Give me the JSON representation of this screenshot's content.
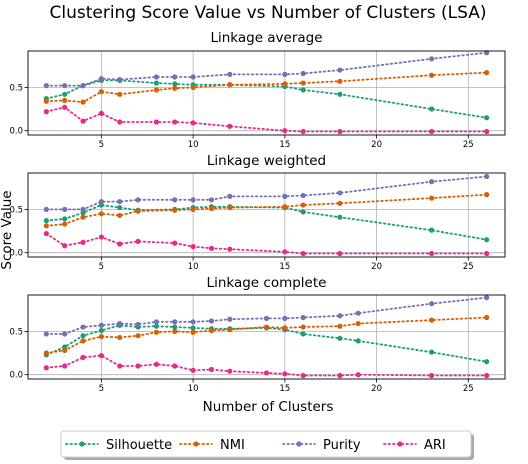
{
  "title": "Clustering Score Value vs Number of Clusters (LSA)",
  "xlabel": "Number of Clusters",
  "ylabel": "Score Value",
  "colors": {
    "Silhouette": "#1b9e77",
    "NMI": "#d95f02",
    "Purity": "#7570b3",
    "ARI": "#e7298a"
  },
  "legend": [
    "Silhouette",
    "NMI",
    "Purity",
    "ARI"
  ],
  "chart_data": [
    {
      "type": "line",
      "title": "Linkage average",
      "xlim": [
        1,
        27
      ],
      "ylim": [
        -0.05,
        0.92
      ],
      "xticks": [
        5,
        10,
        15,
        20,
        25
      ],
      "yticks": [
        "0.0",
        "0.5"
      ],
      "grid": true,
      "x": [
        2,
        3,
        4,
        5,
        6,
        8,
        9,
        10,
        12,
        15,
        16,
        18,
        23,
        26
      ],
      "series": [
        {
          "name": "Silhouette",
          "values": [
            0.37,
            0.42,
            0.52,
            0.58,
            0.58,
            0.55,
            0.54,
            0.53,
            0.53,
            0.51,
            0.47,
            0.42,
            0.25,
            0.15
          ]
        },
        {
          "name": "NMI",
          "values": [
            0.34,
            0.35,
            0.33,
            0.45,
            0.42,
            0.47,
            0.49,
            0.5,
            0.53,
            0.54,
            0.55,
            0.57,
            0.64,
            0.67
          ]
        },
        {
          "name": "Purity",
          "values": [
            0.52,
            0.52,
            0.52,
            0.6,
            0.59,
            0.62,
            0.62,
            0.62,
            0.65,
            0.65,
            0.66,
            0.7,
            0.83,
            0.9
          ]
        },
        {
          "name": "ARI",
          "values": [
            0.22,
            0.27,
            0.11,
            0.2,
            0.1,
            0.1,
            0.1,
            0.09,
            0.05,
            0.0,
            -0.01,
            -0.01,
            -0.01,
            -0.01
          ]
        }
      ]
    },
    {
      "type": "line",
      "title": "Linkage weighted",
      "xlim": [
        1,
        27
      ],
      "ylim": [
        -0.05,
        0.92
      ],
      "xticks": [
        5,
        10,
        15,
        20,
        25
      ],
      "yticks": [
        "0.0",
        "0.5"
      ],
      "grid": true,
      "x": [
        2,
        3,
        4,
        5,
        6,
        7,
        9,
        10,
        11,
        12,
        15,
        16,
        18,
        23,
        26
      ],
      "series": [
        {
          "name": "Silhouette",
          "values": [
            0.37,
            0.39,
            0.46,
            0.55,
            0.52,
            0.49,
            0.5,
            0.52,
            0.53,
            0.53,
            0.52,
            0.47,
            0.41,
            0.26,
            0.15
          ]
        },
        {
          "name": "NMI",
          "values": [
            0.31,
            0.33,
            0.41,
            0.45,
            0.43,
            0.48,
            0.49,
            0.5,
            0.51,
            0.52,
            0.53,
            0.55,
            0.57,
            0.63,
            0.67
          ]
        },
        {
          "name": "Purity",
          "values": [
            0.5,
            0.5,
            0.5,
            0.59,
            0.59,
            0.61,
            0.61,
            0.61,
            0.61,
            0.65,
            0.65,
            0.66,
            0.69,
            0.82,
            0.88
          ]
        },
        {
          "name": "ARI",
          "values": [
            0.22,
            0.08,
            0.12,
            0.18,
            0.1,
            0.13,
            0.11,
            0.07,
            0.05,
            0.04,
            0.01,
            -0.01,
            -0.01,
            -0.01,
            -0.01
          ]
        }
      ]
    },
    {
      "type": "line",
      "title": "Linkage complete",
      "xlim": [
        1,
        27
      ],
      "ylim": [
        -0.05,
        0.92
      ],
      "xticks": [
        5,
        10,
        15,
        20,
        25
      ],
      "yticks": [
        "0.0",
        "0.5"
      ],
      "grid": true,
      "x": [
        2,
        3,
        4,
        5,
        6,
        7,
        8,
        9,
        10,
        11,
        12,
        14,
        15,
        16,
        18,
        19,
        23,
        26
      ],
      "series": [
        {
          "name": "Silhouette",
          "values": [
            0.23,
            0.32,
            0.45,
            0.51,
            0.57,
            0.55,
            0.56,
            0.55,
            0.54,
            0.53,
            0.53,
            0.54,
            0.52,
            0.47,
            0.42,
            0.39,
            0.26,
            0.15
          ]
        },
        {
          "name": "NMI",
          "values": [
            0.25,
            0.28,
            0.39,
            0.44,
            0.43,
            0.45,
            0.49,
            0.5,
            0.49,
            0.51,
            0.52,
            0.55,
            0.54,
            0.55,
            0.56,
            0.59,
            0.63,
            0.66
          ]
        },
        {
          "name": "Purity",
          "values": [
            0.47,
            0.47,
            0.55,
            0.57,
            0.59,
            0.58,
            0.61,
            0.61,
            0.61,
            0.62,
            0.64,
            0.65,
            0.65,
            0.66,
            0.68,
            0.71,
            0.82,
            0.89
          ]
        },
        {
          "name": "ARI",
          "values": [
            0.08,
            0.1,
            0.2,
            0.22,
            0.1,
            0.1,
            0.12,
            0.1,
            0.05,
            0.06,
            0.04,
            0.02,
            0.01,
            -0.01,
            -0.01,
            0.0,
            -0.01,
            -0.01
          ]
        }
      ]
    }
  ]
}
